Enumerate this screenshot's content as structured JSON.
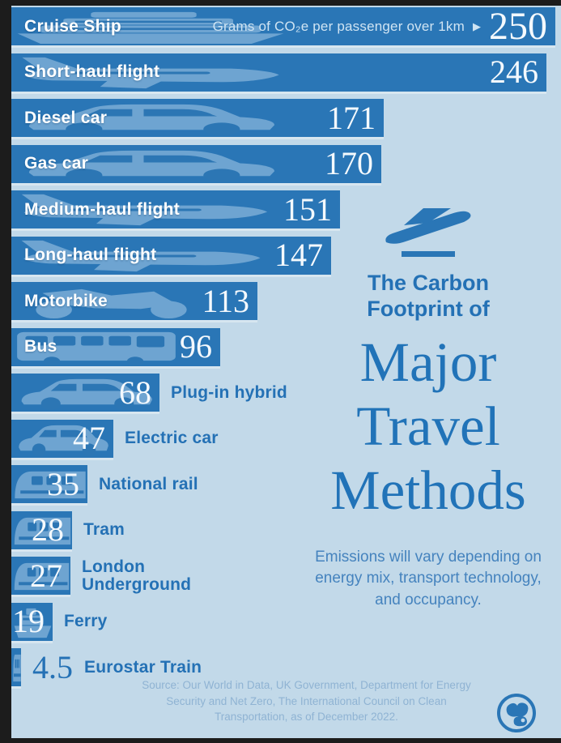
{
  "header": {
    "axis_label": "Grams of CO₂e per passenger over 1km",
    "arrow": "▶"
  },
  "chart_data": {
    "type": "bar",
    "orientation": "horizontal",
    "title": "The Carbon Footprint of Major Travel Methods",
    "xlabel": "Grams of CO₂e per passenger over 1km",
    "xlim": [
      0,
      250
    ],
    "grid": false,
    "categories": [
      "Cruise Ship",
      "Short-haul flight",
      "Diesel car",
      "Gas car",
      "Medium-haul flight",
      "Long-haul flight",
      "Motorbike",
      "Bus",
      "Plug-in hybrid",
      "Electric car",
      "National rail",
      "Tram",
      "London Underground",
      "Ferry",
      "Eurostar Train"
    ],
    "values": [
      250,
      246,
      171,
      170,
      151,
      147,
      113,
      96,
      68,
      47,
      35,
      28,
      27,
      19,
      4.5
    ]
  },
  "bars": [
    {
      "label": "Cruise Ship",
      "value": 250,
      "display": "250",
      "icon": "ship",
      "label_inside": true,
      "value_inside": true
    },
    {
      "label": "Short-haul flight",
      "value": 246,
      "display": "246",
      "icon": "plane",
      "label_inside": true,
      "value_inside": true
    },
    {
      "label": "Diesel car",
      "value": 171,
      "display": "171",
      "icon": "car",
      "label_inside": true,
      "value_inside": true
    },
    {
      "label": "Gas car",
      "value": 170,
      "display": "170",
      "icon": "car",
      "label_inside": true,
      "value_inside": true
    },
    {
      "label": "Medium-haul flight",
      "value": 151,
      "display": "151",
      "icon": "plane",
      "label_inside": true,
      "value_inside": true
    },
    {
      "label": "Long-haul flight",
      "value": 147,
      "display": "147",
      "icon": "plane",
      "label_inside": true,
      "value_inside": true
    },
    {
      "label": "Motorbike",
      "value": 113,
      "display": "113",
      "icon": "bike",
      "label_inside": true,
      "value_inside": true
    },
    {
      "label": "Bus",
      "value": 96,
      "display": "96",
      "icon": "bus",
      "label_inside": true,
      "value_inside": true
    },
    {
      "label": "Plug-in hybrid",
      "value": 68,
      "display": "68",
      "icon": "car",
      "label_inside": false,
      "value_inside": true
    },
    {
      "label": "Electric car",
      "value": 47,
      "display": "47",
      "icon": "car",
      "label_inside": false,
      "value_inside": true
    },
    {
      "label": "National rail",
      "value": 35,
      "display": "35",
      "icon": "train",
      "label_inside": false,
      "value_inside": true
    },
    {
      "label": "Tram",
      "value": 28,
      "display": "28",
      "icon": "train",
      "label_inside": false,
      "value_inside": true
    },
    {
      "label": "London Underground",
      "value": 27,
      "display": "27",
      "icon": "train",
      "label_inside": false,
      "value_inside": true,
      "wrap": true
    },
    {
      "label": "Ferry",
      "value": 19,
      "display": "19",
      "icon": "ferry",
      "label_inside": false,
      "value_inside": true
    },
    {
      "label": "Eurostar Train",
      "value": 4.5,
      "display": "4.5",
      "icon": "train",
      "label_inside": false,
      "value_inside": false
    }
  ],
  "side_panel": {
    "kicker_lines": [
      "The Carbon",
      "Footprint of"
    ],
    "title_lines": [
      "Major",
      "Travel",
      "Methods"
    ],
    "subtitle": "Emissions will vary depending on energy mix, transport technology, and occupancy."
  },
  "footer": {
    "source": "Source: Our World in Data, UK Government, Department for Energy Security and Net Zero, The International Council on Clean Transportation, as of December 2022."
  },
  "colors": {
    "frame": "#1c1c1c",
    "bg": "#c2d9e9",
    "bar": "#2a76b6",
    "ink": "#2471b5",
    "title": "#2173b8",
    "subtitle_text": "#4583be",
    "value_light": "#f4f9fd",
    "axis_note": "#cfe4f3",
    "source": "#8fb3d3",
    "veh": "#a6cbe8",
    "win": "#2f77b3"
  }
}
